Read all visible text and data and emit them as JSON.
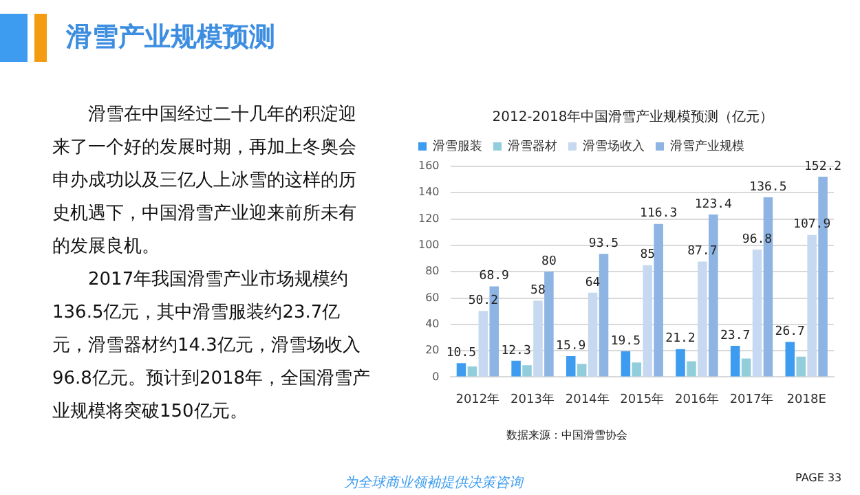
{
  "chart_data": {
    "type": "bar",
    "title": "滑雪产业规模预测",
    "subtitle": "2012-2018年中国滑雪产业规模预测（亿元）",
    "categories": [
      "2012年",
      "2013年",
      "2014年",
      "2015年",
      "2016年",
      "2017年",
      "2018E"
    ],
    "series": [
      {
        "name": "滑雪服装",
        "color": "#3d9cf0",
        "values": [
          10.5,
          12.3,
          15.9,
          19.5,
          21.2,
          23.7,
          26.7
        ],
        "value_labels": [
          "10.5",
          "12.3",
          "15.9",
          "19.5",
          "21.2",
          "23.7",
          "26.7"
        ]
      },
      {
        "name": "滑雪器材",
        "color": "#92cddc",
        "values": [
          8,
          9,
          10,
          11,
          12,
          14,
          15.5
        ]
      },
      {
        "name": "滑雪场收入",
        "color": "#c6d9f1",
        "values": [
          50.2,
          58,
          64,
          85,
          87.7,
          96.8,
          107.9
        ],
        "value_labels": [
          "50.2",
          "58",
          "64",
          "85",
          "87.7",
          "96.8",
          "107.9"
        ]
      },
      {
        "name": "滑雪产业规模",
        "color": "#8db4e2",
        "values": [
          68.9,
          80,
          93.5,
          116.3,
          123.4,
          136.5,
          152.2
        ],
        "value_labels": [
          "68.9",
          "80",
          "93.5",
          "116.3",
          "123.4",
          "136.5",
          "152.2"
        ]
      }
    ],
    "ylim": [
      0,
      160
    ],
    "yticks": [
      0,
      20,
      40,
      60,
      80,
      100,
      120,
      140,
      160
    ],
    "grid": "y",
    "legend": "top left",
    "annotations": [
      "滑雪在中国经过二十几年的积淀迎来了一个好的发展时期，再加上冬奥会申办成功以及三亿人上冰雪的这样的历史机遇下，中国滑雪产业迎来前所未有的发展良机。",
      "2017年我国滑雪产业市场规模约136.5亿元，其中滑雪服装约23.7亿元，滑雪器材约14.3亿元，滑雪场收入96.8亿元。预计到2018年，全国滑雪产业规模将突破150亿元。",
      "数据来源：中国滑雪协会",
      "为全球商业领袖提供决策咨询",
      "PAGE 33"
    ]
  }
}
